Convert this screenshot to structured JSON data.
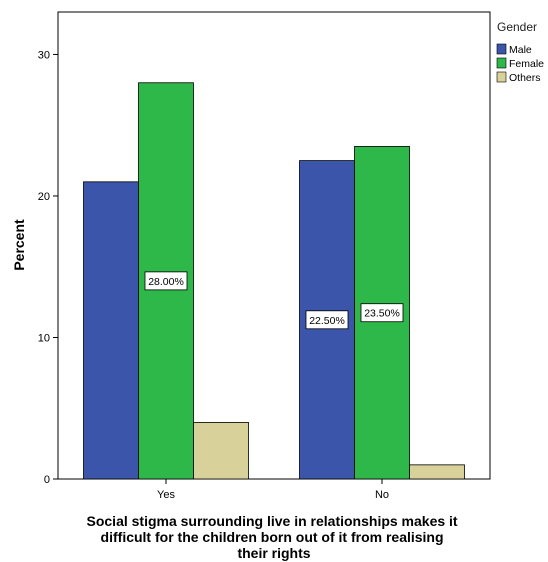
{
  "chart_data": {
    "type": "bar",
    "title": "",
    "xlabel": "Social stigma surrounding live in relationships makes it difficult for the children born out of it from realising their rights",
    "xlabel_lines": [
      "Social stigma surrounding live in relationships makes it",
      "difficult for the children born out of it from realising",
      "their rights"
    ],
    "ylabel": "Percent",
    "ylim": [
      0,
      33
    ],
    "yticks": [
      0,
      10,
      20,
      30
    ],
    "categories": [
      "Yes",
      "No"
    ],
    "legend": {
      "title": "Gender",
      "position": "top-right"
    },
    "grid": false,
    "series": [
      {
        "name": "Male",
        "color": "#3a55a9",
        "values": [
          21.0,
          22.5
        ],
        "labels": [
          "",
          "22.50%"
        ]
      },
      {
        "name": "Female",
        "color": "#2eb84a",
        "values": [
          28.0,
          23.5
        ],
        "labels": [
          "28.00%",
          "23.50%"
        ]
      },
      {
        "name": "Others",
        "color": "#d8d29a",
        "values": [
          4.0,
          1.0
        ],
        "labels": [
          "",
          ""
        ]
      }
    ]
  }
}
